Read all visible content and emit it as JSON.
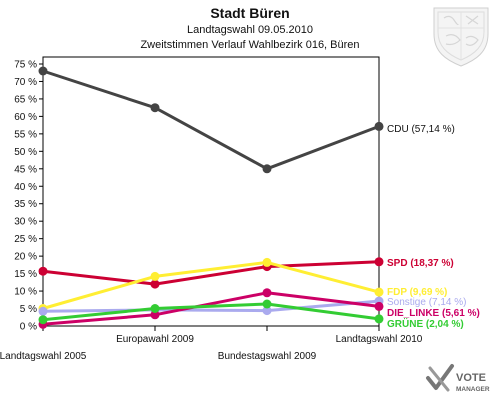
{
  "header": {
    "title": "Stadt Büren",
    "subtitle_1": "Landtagswahl 09.05.2010",
    "subtitle_2": "Zweitstimmen Verlauf Wahlbezirk 016, Büren"
  },
  "brand": {
    "line1": "VOTE",
    "line2": "MANAGER"
  },
  "chart_data": {
    "type": "line",
    "title": "Stadt Büren",
    "categories": [
      "Landtagswahl 2005",
      "Europawahl 2009",
      "Bundestagswahl 2009",
      "Landtagswahl 2010"
    ],
    "ylim": [
      0,
      77
    ],
    "yticks": [
      0,
      5,
      10,
      15,
      20,
      25,
      30,
      35,
      40,
      45,
      50,
      55,
      60,
      65,
      70,
      75
    ],
    "ytick_suffix": " %",
    "grid": false,
    "legend": "end-labels-right",
    "series": [
      {
        "name": "CDU",
        "label": "CDU (57,14 %)",
        "color": "#444444",
        "label_color": "#111111",
        "bold": false,
        "values": [
          73,
          62.5,
          45,
          57.14
        ]
      },
      {
        "name": "SPD",
        "label": "SPD (18,37 %)",
        "color": "#cc0033",
        "label_color": "#cc0033",
        "bold": true,
        "values": [
          15.7,
          12,
          17,
          18.37
        ]
      },
      {
        "name": "FDP",
        "label": "FDP (9,69 %)",
        "color": "#ffee33",
        "label_color": "#ffee33",
        "bold": true,
        "values": [
          5,
          14.2,
          18.2,
          9.69
        ]
      },
      {
        "name": "Sonstige",
        "label": "Sonstige (7,14 %)",
        "color": "#aaaaee",
        "label_color": "#aaaaee",
        "bold": false,
        "values": [
          4.2,
          4.6,
          4.4,
          7.14
        ]
      },
      {
        "name": "DIE LINKE",
        "label": "DIE_LINKE (5,61 %)",
        "color": "#cc0066",
        "label_color": "#cc0066",
        "bold": true,
        "values": [
          0.5,
          3.2,
          9.5,
          5.61
        ]
      },
      {
        "name": "GRÜNE",
        "label": "GRÜNE (2,04 %)",
        "color": "#33cc33",
        "label_color": "#33cc33",
        "bold": true,
        "values": [
          1.8,
          5,
          6.3,
          2.04
        ]
      }
    ]
  }
}
